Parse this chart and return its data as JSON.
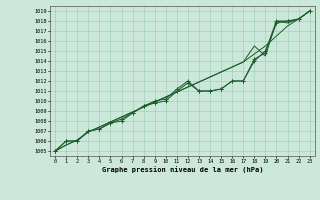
{
  "title": "Graphe pression niveau de la mer (hPa)",
  "bg_color": "#cce8da",
  "grid_color": "#99ccb3",
  "line_color_dark": "#1a5c2a",
  "line_color_med": "#2d7a3e",
  "xlim": [
    -0.5,
    23.5
  ],
  "ylim": [
    1004.5,
    1019.5
  ],
  "yticks": [
    1005,
    1006,
    1007,
    1008,
    1009,
    1010,
    1011,
    1012,
    1013,
    1014,
    1015,
    1016,
    1017,
    1018,
    1019
  ],
  "xticks": [
    0,
    1,
    2,
    3,
    4,
    5,
    6,
    7,
    8,
    9,
    10,
    11,
    12,
    13,
    14,
    15,
    16,
    17,
    18,
    19,
    20,
    21,
    22,
    23
  ],
  "series_smooth1": [
    1005,
    1005.6,
    1006.1,
    1006.9,
    1007.4,
    1007.9,
    1008.4,
    1008.9,
    1009.4,
    1009.9,
    1010.4,
    1010.9,
    1011.4,
    1011.9,
    1012.4,
    1012.9,
    1013.4,
    1013.9,
    1014.7,
    1015.5,
    1016.5,
    1017.5,
    1018.2,
    1019.0
  ],
  "series_smooth2": [
    1005,
    1005.6,
    1006.1,
    1006.9,
    1007.4,
    1007.9,
    1008.4,
    1008.9,
    1009.4,
    1009.9,
    1010.4,
    1010.9,
    1011.4,
    1011.9,
    1012.4,
    1012.9,
    1013.4,
    1013.9,
    1015.5,
    1014.5,
    1018.0,
    1017.8,
    1018.2,
    1019.0
  ],
  "series_markers1": [
    1005,
    1006.0,
    1006.0,
    1007.0,
    1007.2,
    1007.8,
    1008.0,
    1008.8,
    1009.5,
    1009.8,
    1010.0,
    1011.0,
    1011.8,
    1011.0,
    1011.0,
    1011.2,
    1012.0,
    1012.0,
    1014.0,
    1015.0,
    1018.0,
    1018.0,
    1018.2,
    1019.0
  ],
  "series_markers2": [
    1005,
    1006.0,
    1006.0,
    1007.0,
    1007.2,
    1007.8,
    1008.2,
    1008.8,
    1009.5,
    1010.0,
    1010.2,
    1011.2,
    1012.0,
    1011.0,
    1011.0,
    1011.2,
    1012.0,
    1012.0,
    1014.2,
    1014.8,
    1017.8,
    1018.0,
    1018.2,
    1019.0
  ]
}
